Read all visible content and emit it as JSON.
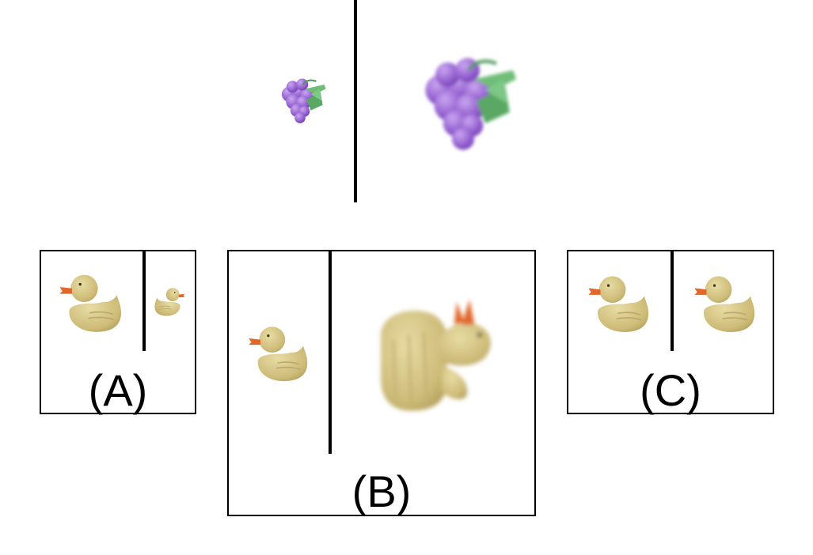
{
  "options": [
    {
      "id": "A",
      "label": "(A)"
    },
    {
      "id": "B",
      "label": "(B)"
    },
    {
      "id": "C",
      "label": "(C)"
    }
  ],
  "icons": {
    "example_left": "grapes-icon",
    "example_right": "grapes-icon",
    "option_objects": "rubber-duck-icon"
  },
  "colors": {
    "grape": "#9b6bd1",
    "leaf": "#5fae6a",
    "duck_body": "#d8c98a",
    "duck_beak": "#e0662a"
  }
}
